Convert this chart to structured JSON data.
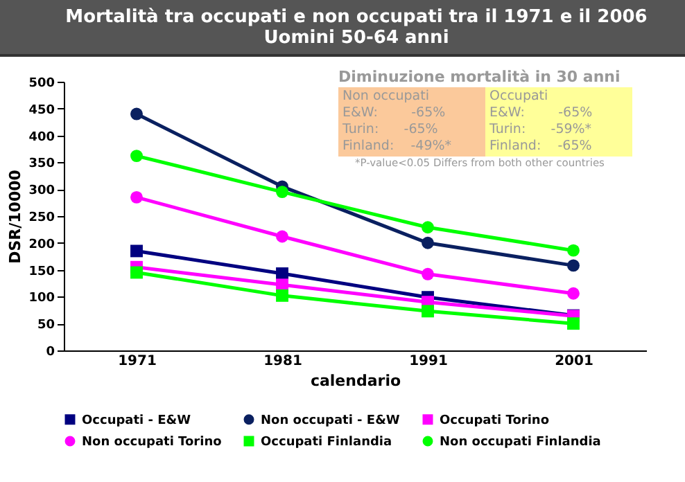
{
  "chart_data": {
    "type": "line",
    "title": "Mortalità tra occupati e non occupati tra il 1971 e il 2006",
    "subtitle": "Uomini 50-64 anni",
    "xlabel": "calendario",
    "ylabel": "DSR/10000",
    "x": [
      1971,
      1981,
      1991,
      2001
    ],
    "xlim": [
      1966,
      2006
    ],
    "xticks": [
      1971,
      1981,
      1991,
      2001
    ],
    "ylim": [
      0,
      500
    ],
    "yticks": [
      0,
      50,
      100,
      150,
      200,
      250,
      300,
      350,
      400,
      450,
      500
    ],
    "grid": false,
    "legend": "bottom",
    "series": [
      {
        "name": "Occupati - E&W",
        "color": "#000080",
        "marker": "square",
        "values": [
          185,
          143,
          99,
          65
        ]
      },
      {
        "name": "Non occupati - E&W",
        "color": "#0a2060",
        "marker": "circle",
        "values": [
          440,
          305,
          200,
          158
        ]
      },
      {
        "name": "Occupati Torino",
        "color": "#ff00ff",
        "marker": "square",
        "values": [
          155,
          122,
          90,
          64
        ]
      },
      {
        "name": "Non occupati Torino",
        "color": "#ff00ff",
        "marker": "circle",
        "values": [
          285,
          212,
          142,
          106
        ]
      },
      {
        "name": "Occupati Finlandia",
        "color": "#00ff00",
        "marker": "square",
        "values": [
          145,
          102,
          73,
          50
        ]
      },
      {
        "name": "Non occupati Finlandia",
        "color": "#00ff00",
        "marker": "circle",
        "values": [
          362,
          295,
          229,
          186
        ]
      }
    ],
    "annotations": [
      "Diminuzione mortalità in 30 anni",
      "Non occupati",
      "E&W: -65%",
      "Turin: -65%",
      "Finland: -49%*",
      "Occupati",
      "E&W: -65%",
      "Turin: -59%*",
      "Finland: -65%",
      "*P-value<0.05 Differs from both other countries"
    ]
  }
}
